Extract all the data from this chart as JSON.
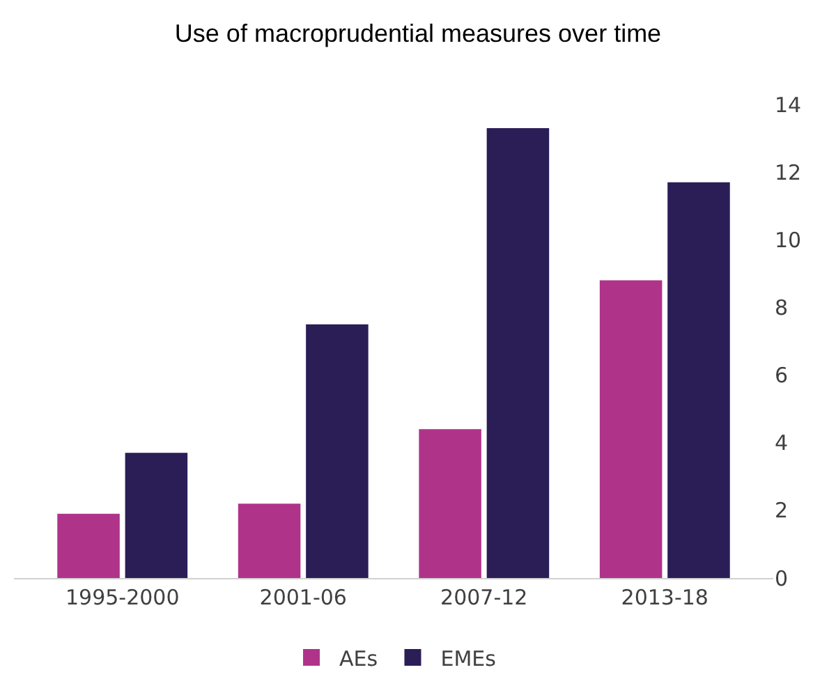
{
  "chart_data": {
    "type": "bar",
    "title": "Use of macroprudential measures over time",
    "categories": [
      "1995-2000",
      "2001-06",
      "2007-12",
      "2013-18"
    ],
    "series": [
      {
        "name": "AEs",
        "color": "#b0338a",
        "values": [
          1.9,
          2.2,
          4.4,
          8.8
        ]
      },
      {
        "name": "EMEs",
        "color": "#2b1e57",
        "values": [
          3.7,
          7.5,
          13.3,
          11.7
        ]
      }
    ],
    "ylim": [
      0,
      14
    ],
    "yticks": [
      0,
      2,
      4,
      6,
      8,
      10,
      12,
      14
    ],
    "grid": false,
    "legend": "bottom"
  }
}
